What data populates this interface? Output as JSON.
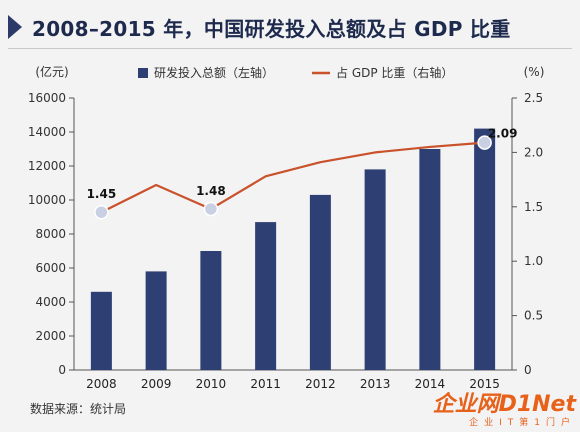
{
  "header": {
    "title": "2008–2015 年，中国研发投入总额及占 GDP 比重"
  },
  "source": "数据来源：统计局",
  "watermark": {
    "main": "企业网D1Net",
    "sub": "企业IT第1门户"
  },
  "colors": {
    "bar": "#2e3f73",
    "line": "#c9522b",
    "marker": "#c9d0e3",
    "accent": "#1e2a4d"
  },
  "chart_data": {
    "type": "bar+line",
    "categories": [
      "2008",
      "2009",
      "2010",
      "2011",
      "2012",
      "2013",
      "2014",
      "2015"
    ],
    "series": [
      {
        "name": "研发投入总额（左轴）",
        "type": "bar",
        "axis": "left",
        "values": [
          4600,
          5800,
          7000,
          8700,
          10300,
          11800,
          13000,
          14200
        ]
      },
      {
        "name": "占 GDP 比重（右轴）",
        "type": "line",
        "axis": "right",
        "values": [
          1.45,
          1.7,
          1.48,
          1.78,
          1.91,
          2.0,
          2.05,
          2.09
        ]
      }
    ],
    "left_axis": {
      "unit_label": "(亿元)",
      "ylim": [
        0,
        16000
      ],
      "ticks": [
        "0",
        "2000",
        "4000",
        "6000",
        "8000",
        "10000",
        "12000",
        "14000",
        "16000"
      ]
    },
    "right_axis": {
      "unit_label": "(%)",
      "ylim": [
        0,
        2.5
      ],
      "ticks": [
        "0",
        "0.5",
        "1.0",
        "1.5",
        "2.0",
        "2.5"
      ]
    },
    "data_labels": [
      {
        "index": 0,
        "text": "1.45"
      },
      {
        "index": 2,
        "text": "1.48"
      },
      {
        "index": 7,
        "text": "2.09"
      }
    ],
    "legend_position": "top-center",
    "grid": false
  }
}
